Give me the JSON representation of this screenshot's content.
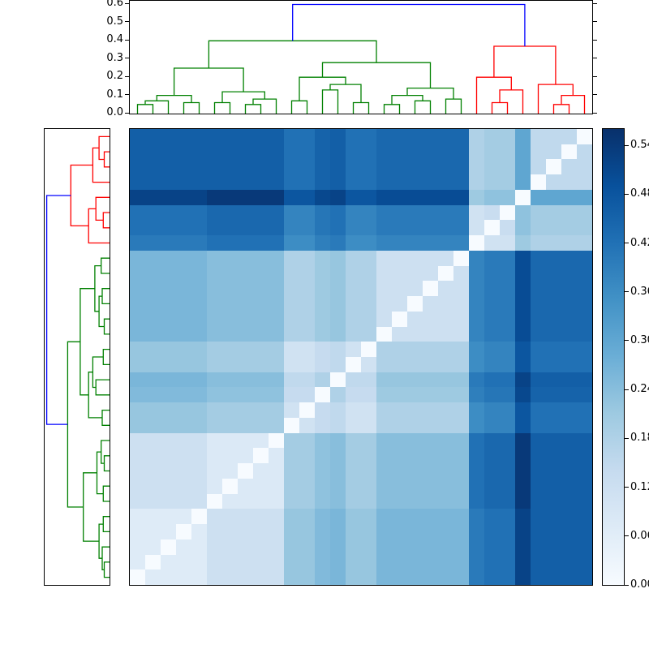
{
  "chart_data": {
    "type": "heatmap",
    "subtype": "clustered-distance-matrix-with-dendrograms",
    "title": "",
    "n": 30,
    "row_order": "reverse of column order (zero-distance diagonal runs from top-right to bottom-left)",
    "vmin": 0.0,
    "vmax": 0.56,
    "colormap": "Blues",
    "colormap_stops": [
      [
        0,
        "#f7fbff"
      ],
      [
        0.125,
        "#deebf7"
      ],
      [
        0.25,
        "#c6dbef"
      ],
      [
        0.375,
        "#9ecae1"
      ],
      [
        0.5,
        "#6baed6"
      ],
      [
        0.625,
        "#4292c6"
      ],
      [
        0.75,
        "#2171b5"
      ],
      [
        0.875,
        "#08519c"
      ],
      [
        1,
        "#08306b"
      ]
    ],
    "top_axis": {
      "ticks": [
        "0.0",
        "0.1",
        "0.2",
        "0.3",
        "0.4",
        "0.5",
        "0.6"
      ],
      "max": 0.62
    },
    "colorbar": {
      "ticks": [
        "0.00",
        "0.06",
        "0.12",
        "0.18",
        "0.24",
        "0.30",
        "0.36",
        "0.42",
        "0.48",
        "0.54"
      ]
    },
    "dendrogram_colors": {
      "g": "#008000",
      "r": "#ff0000",
      "b": "#0000ff"
    },
    "clusters": {
      "green_leaves": [
        0,
        21
      ],
      "red_leaves": [
        22,
        29
      ]
    },
    "dendrogram_merges": [
      [
        0,
        1,
        0.05,
        "g"
      ],
      [
        30,
        2,
        0.07,
        "g"
      ],
      [
        3,
        4,
        0.06,
        "g"
      ],
      [
        31,
        32,
        0.1,
        "g"
      ],
      [
        5,
        6,
        0.06,
        "g"
      ],
      [
        7,
        8,
        0.05,
        "g"
      ],
      [
        35,
        9,
        0.08,
        "g"
      ],
      [
        34,
        36,
        0.12,
        "g"
      ],
      [
        33,
        37,
        0.25,
        "g"
      ],
      [
        10,
        11,
        0.07,
        "g"
      ],
      [
        14,
        15,
        0.06,
        "g"
      ],
      [
        12,
        13,
        0.13,
        "g"
      ],
      [
        40,
        41,
        0.16,
        "g"
      ],
      [
        39,
        42,
        0.2,
        "g"
      ],
      [
        16,
        17,
        0.05,
        "g"
      ],
      [
        18,
        19,
        0.07,
        "g"
      ],
      [
        44,
        45,
        0.1,
        "g"
      ],
      [
        20,
        21,
        0.08,
        "g"
      ],
      [
        46,
        47,
        0.14,
        "g"
      ],
      [
        43,
        48,
        0.28,
        "g"
      ],
      [
        38,
        49,
        0.4,
        "g"
      ],
      [
        23,
        24,
        0.06,
        "r"
      ],
      [
        51,
        25,
        0.13,
        "r"
      ],
      [
        22,
        52,
        0.2,
        "r"
      ],
      [
        27,
        28,
        0.05,
        "r"
      ],
      [
        54,
        29,
        0.1,
        "r"
      ],
      [
        26,
        55,
        0.16,
        "r"
      ],
      [
        53,
        56,
        0.37,
        "r"
      ],
      [
        50,
        57,
        0.6,
        "b"
      ]
    ],
    "matrix": [
      [
        0.0,
        0.07,
        0.07,
        0.07,
        0.07,
        0.12,
        0.12,
        0.12,
        0.12,
        0.12,
        0.22,
        0.22,
        0.25,
        0.26,
        0.22,
        0.22,
        0.26,
        0.26,
        0.26,
        0.26,
        0.26,
        0.26,
        0.4,
        0.42,
        0.42,
        0.52,
        0.46,
        0.46,
        0.46,
        0.46
      ],
      [
        0.07,
        0.0,
        0.07,
        0.07,
        0.07,
        0.12,
        0.12,
        0.12,
        0.12,
        0.12,
        0.22,
        0.22,
        0.25,
        0.26,
        0.22,
        0.22,
        0.26,
        0.26,
        0.26,
        0.26,
        0.26,
        0.26,
        0.4,
        0.42,
        0.42,
        0.52,
        0.46,
        0.46,
        0.46,
        0.46
      ],
      [
        0.07,
        0.07,
        0.0,
        0.07,
        0.07,
        0.12,
        0.12,
        0.12,
        0.12,
        0.12,
        0.22,
        0.22,
        0.25,
        0.26,
        0.22,
        0.22,
        0.26,
        0.26,
        0.26,
        0.26,
        0.26,
        0.26,
        0.4,
        0.42,
        0.42,
        0.52,
        0.46,
        0.46,
        0.46,
        0.46
      ],
      [
        0.07,
        0.07,
        0.07,
        0.0,
        0.07,
        0.12,
        0.12,
        0.12,
        0.12,
        0.12,
        0.22,
        0.22,
        0.25,
        0.26,
        0.22,
        0.22,
        0.26,
        0.26,
        0.26,
        0.26,
        0.26,
        0.26,
        0.4,
        0.42,
        0.42,
        0.52,
        0.46,
        0.46,
        0.46,
        0.46
      ],
      [
        0.07,
        0.07,
        0.07,
        0.07,
        0.0,
        0.12,
        0.12,
        0.12,
        0.12,
        0.12,
        0.22,
        0.22,
        0.25,
        0.26,
        0.22,
        0.22,
        0.26,
        0.26,
        0.26,
        0.26,
        0.26,
        0.26,
        0.4,
        0.42,
        0.42,
        0.52,
        0.46,
        0.46,
        0.46,
        0.46
      ],
      [
        0.12,
        0.12,
        0.12,
        0.12,
        0.12,
        0.0,
        0.08,
        0.08,
        0.08,
        0.08,
        0.2,
        0.2,
        0.23,
        0.24,
        0.2,
        0.2,
        0.24,
        0.24,
        0.24,
        0.24,
        0.24,
        0.24,
        0.42,
        0.44,
        0.44,
        0.54,
        0.46,
        0.46,
        0.46,
        0.46
      ],
      [
        0.12,
        0.12,
        0.12,
        0.12,
        0.12,
        0.08,
        0.0,
        0.08,
        0.08,
        0.08,
        0.2,
        0.2,
        0.23,
        0.24,
        0.2,
        0.2,
        0.24,
        0.24,
        0.24,
        0.24,
        0.24,
        0.24,
        0.42,
        0.44,
        0.44,
        0.54,
        0.46,
        0.46,
        0.46,
        0.46
      ],
      [
        0.12,
        0.12,
        0.12,
        0.12,
        0.12,
        0.08,
        0.08,
        0.0,
        0.08,
        0.08,
        0.2,
        0.2,
        0.23,
        0.24,
        0.2,
        0.2,
        0.24,
        0.24,
        0.24,
        0.24,
        0.24,
        0.24,
        0.42,
        0.44,
        0.44,
        0.54,
        0.46,
        0.46,
        0.46,
        0.46
      ],
      [
        0.12,
        0.12,
        0.12,
        0.12,
        0.12,
        0.08,
        0.08,
        0.08,
        0.0,
        0.08,
        0.2,
        0.2,
        0.23,
        0.24,
        0.2,
        0.2,
        0.24,
        0.24,
        0.24,
        0.24,
        0.24,
        0.24,
        0.42,
        0.44,
        0.44,
        0.54,
        0.46,
        0.46,
        0.46,
        0.46
      ],
      [
        0.12,
        0.12,
        0.12,
        0.12,
        0.12,
        0.08,
        0.08,
        0.08,
        0.08,
        0.0,
        0.2,
        0.2,
        0.23,
        0.24,
        0.2,
        0.2,
        0.24,
        0.24,
        0.24,
        0.24,
        0.24,
        0.24,
        0.42,
        0.44,
        0.44,
        0.54,
        0.46,
        0.46,
        0.46,
        0.46
      ],
      [
        0.22,
        0.22,
        0.22,
        0.22,
        0.22,
        0.2,
        0.2,
        0.2,
        0.2,
        0.2,
        0.0,
        0.11,
        0.14,
        0.15,
        0.11,
        0.11,
        0.18,
        0.18,
        0.18,
        0.18,
        0.18,
        0.18,
        0.36,
        0.38,
        0.38,
        0.48,
        0.42,
        0.42,
        0.42,
        0.42
      ],
      [
        0.22,
        0.22,
        0.22,
        0.22,
        0.22,
        0.2,
        0.2,
        0.2,
        0.2,
        0.2,
        0.11,
        0.0,
        0.14,
        0.15,
        0.11,
        0.11,
        0.18,
        0.18,
        0.18,
        0.18,
        0.18,
        0.18,
        0.36,
        0.38,
        0.38,
        0.48,
        0.42,
        0.42,
        0.42,
        0.42
      ],
      [
        0.25,
        0.25,
        0.25,
        0.25,
        0.25,
        0.23,
        0.23,
        0.23,
        0.23,
        0.23,
        0.14,
        0.14,
        0.0,
        0.18,
        0.14,
        0.14,
        0.21,
        0.21,
        0.21,
        0.21,
        0.21,
        0.21,
        0.39,
        0.41,
        0.41,
        0.51,
        0.45,
        0.45,
        0.45,
        0.45
      ],
      [
        0.26,
        0.26,
        0.26,
        0.26,
        0.26,
        0.24,
        0.24,
        0.24,
        0.24,
        0.24,
        0.15,
        0.15,
        0.18,
        0.0,
        0.15,
        0.15,
        0.22,
        0.22,
        0.22,
        0.22,
        0.22,
        0.22,
        0.4,
        0.42,
        0.42,
        0.52,
        0.46,
        0.46,
        0.46,
        0.46
      ],
      [
        0.22,
        0.22,
        0.22,
        0.22,
        0.22,
        0.2,
        0.2,
        0.2,
        0.2,
        0.2,
        0.11,
        0.11,
        0.14,
        0.15,
        0.0,
        0.11,
        0.18,
        0.18,
        0.18,
        0.18,
        0.18,
        0.18,
        0.36,
        0.38,
        0.38,
        0.48,
        0.42,
        0.42,
        0.42,
        0.42
      ],
      [
        0.22,
        0.22,
        0.22,
        0.22,
        0.22,
        0.2,
        0.2,
        0.2,
        0.2,
        0.2,
        0.11,
        0.11,
        0.14,
        0.15,
        0.11,
        0.0,
        0.18,
        0.18,
        0.18,
        0.18,
        0.18,
        0.18,
        0.36,
        0.38,
        0.38,
        0.48,
        0.42,
        0.42,
        0.42,
        0.42
      ],
      [
        0.26,
        0.26,
        0.26,
        0.26,
        0.26,
        0.24,
        0.24,
        0.24,
        0.24,
        0.24,
        0.18,
        0.18,
        0.21,
        0.22,
        0.18,
        0.18,
        0.0,
        0.12,
        0.12,
        0.12,
        0.12,
        0.12,
        0.38,
        0.4,
        0.4,
        0.5,
        0.44,
        0.44,
        0.44,
        0.44
      ],
      [
        0.26,
        0.26,
        0.26,
        0.26,
        0.26,
        0.24,
        0.24,
        0.24,
        0.24,
        0.24,
        0.18,
        0.18,
        0.21,
        0.22,
        0.18,
        0.18,
        0.12,
        0.0,
        0.12,
        0.12,
        0.12,
        0.12,
        0.38,
        0.4,
        0.4,
        0.5,
        0.44,
        0.44,
        0.44,
        0.44
      ],
      [
        0.26,
        0.26,
        0.26,
        0.26,
        0.26,
        0.24,
        0.24,
        0.24,
        0.24,
        0.24,
        0.18,
        0.18,
        0.21,
        0.22,
        0.18,
        0.18,
        0.12,
        0.12,
        0.0,
        0.12,
        0.12,
        0.12,
        0.38,
        0.4,
        0.4,
        0.5,
        0.44,
        0.44,
        0.44,
        0.44
      ],
      [
        0.26,
        0.26,
        0.26,
        0.26,
        0.26,
        0.24,
        0.24,
        0.24,
        0.24,
        0.24,
        0.18,
        0.18,
        0.21,
        0.22,
        0.18,
        0.18,
        0.12,
        0.12,
        0.12,
        0.0,
        0.12,
        0.12,
        0.38,
        0.4,
        0.4,
        0.5,
        0.44,
        0.44,
        0.44,
        0.44
      ],
      [
        0.26,
        0.26,
        0.26,
        0.26,
        0.26,
        0.24,
        0.24,
        0.24,
        0.24,
        0.24,
        0.18,
        0.18,
        0.21,
        0.22,
        0.18,
        0.18,
        0.12,
        0.12,
        0.12,
        0.12,
        0.0,
        0.12,
        0.38,
        0.4,
        0.4,
        0.5,
        0.44,
        0.44,
        0.44,
        0.44
      ],
      [
        0.26,
        0.26,
        0.26,
        0.26,
        0.26,
        0.24,
        0.24,
        0.24,
        0.24,
        0.24,
        0.18,
        0.18,
        0.21,
        0.22,
        0.18,
        0.18,
        0.12,
        0.12,
        0.12,
        0.12,
        0.12,
        0.0,
        0.38,
        0.4,
        0.4,
        0.5,
        0.44,
        0.44,
        0.44,
        0.44
      ],
      [
        0.4,
        0.4,
        0.4,
        0.4,
        0.4,
        0.42,
        0.42,
        0.42,
        0.42,
        0.42,
        0.36,
        0.36,
        0.39,
        0.4,
        0.36,
        0.36,
        0.38,
        0.38,
        0.38,
        0.38,
        0.38,
        0.38,
        0.0,
        0.11,
        0.11,
        0.21,
        0.18,
        0.18,
        0.18,
        0.18
      ],
      [
        0.42,
        0.42,
        0.42,
        0.42,
        0.42,
        0.44,
        0.44,
        0.44,
        0.44,
        0.44,
        0.38,
        0.38,
        0.41,
        0.42,
        0.38,
        0.38,
        0.4,
        0.4,
        0.4,
        0.4,
        0.4,
        0.4,
        0.11,
        0.0,
        0.13,
        0.23,
        0.2,
        0.2,
        0.2,
        0.2
      ],
      [
        0.42,
        0.42,
        0.42,
        0.42,
        0.42,
        0.44,
        0.44,
        0.44,
        0.44,
        0.44,
        0.38,
        0.38,
        0.41,
        0.42,
        0.38,
        0.38,
        0.4,
        0.4,
        0.4,
        0.4,
        0.4,
        0.4,
        0.11,
        0.13,
        0.0,
        0.23,
        0.2,
        0.2,
        0.2,
        0.2
      ],
      [
        0.52,
        0.52,
        0.52,
        0.52,
        0.52,
        0.54,
        0.54,
        0.54,
        0.54,
        0.54,
        0.48,
        0.48,
        0.51,
        0.52,
        0.48,
        0.48,
        0.5,
        0.5,
        0.5,
        0.5,
        0.5,
        0.5,
        0.21,
        0.23,
        0.23,
        0.0,
        0.3,
        0.3,
        0.3,
        0.3
      ],
      [
        0.46,
        0.46,
        0.46,
        0.46,
        0.46,
        0.46,
        0.46,
        0.46,
        0.46,
        0.46,
        0.42,
        0.42,
        0.45,
        0.46,
        0.42,
        0.42,
        0.44,
        0.44,
        0.44,
        0.44,
        0.44,
        0.44,
        0.18,
        0.2,
        0.2,
        0.3,
        0.0,
        0.15,
        0.15,
        0.15
      ],
      [
        0.46,
        0.46,
        0.46,
        0.46,
        0.46,
        0.46,
        0.46,
        0.46,
        0.46,
        0.46,
        0.42,
        0.42,
        0.45,
        0.46,
        0.42,
        0.42,
        0.44,
        0.44,
        0.44,
        0.44,
        0.44,
        0.44,
        0.18,
        0.2,
        0.2,
        0.3,
        0.15,
        0.0,
        0.15,
        0.15
      ],
      [
        0.46,
        0.46,
        0.46,
        0.46,
        0.46,
        0.46,
        0.46,
        0.46,
        0.46,
        0.46,
        0.42,
        0.42,
        0.45,
        0.46,
        0.42,
        0.42,
        0.44,
        0.44,
        0.44,
        0.44,
        0.44,
        0.44,
        0.18,
        0.2,
        0.2,
        0.3,
        0.15,
        0.15,
        0.0,
        0.15
      ],
      [
        0.46,
        0.46,
        0.46,
        0.46,
        0.46,
        0.46,
        0.46,
        0.46,
        0.46,
        0.46,
        0.42,
        0.42,
        0.45,
        0.46,
        0.42,
        0.42,
        0.44,
        0.44,
        0.44,
        0.44,
        0.44,
        0.44,
        0.18,
        0.2,
        0.2,
        0.3,
        0.15,
        0.15,
        0.15,
        0.0
      ]
    ]
  }
}
